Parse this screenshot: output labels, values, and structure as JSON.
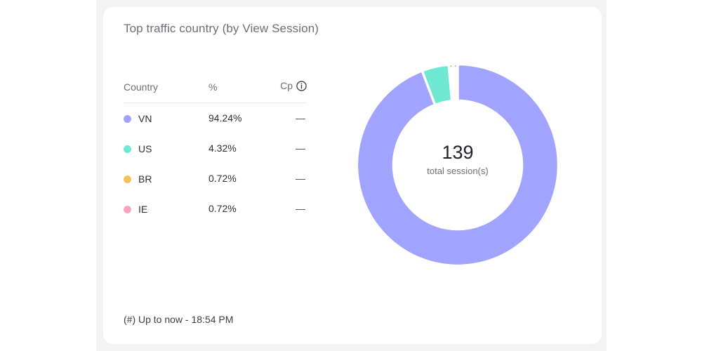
{
  "card": {
    "title": "Top traffic country (by View Session)",
    "footer": "(#) Up to now - 18:54 PM"
  },
  "table": {
    "headers": {
      "country": "Country",
      "percent": "%",
      "cp": "Cp"
    },
    "info_icon": "info-circle-icon",
    "rows": [
      {
        "country": "VN",
        "percent": "94.24%",
        "cp": "—",
        "color": "#a0a4ff"
      },
      {
        "country": "US",
        "percent": "4.32%",
        "cp": "—",
        "color": "#6ee7d3"
      },
      {
        "country": "BR",
        "percent": "0.72%",
        "cp": "—",
        "color": "#f6c15b"
      },
      {
        "country": "IE",
        "percent": "0.72%",
        "cp": "—",
        "color": "#f6a6b8"
      }
    ]
  },
  "chart_data": {
    "type": "pie",
    "variant": "donut",
    "categories": [
      "VN",
      "US",
      "BR",
      "IE"
    ],
    "values": [
      94.24,
      4.32,
      0.72,
      0.72
    ],
    "colors": [
      "#a0a4ff",
      "#6ee7d3",
      "#f6c15b",
      "#f6a6b8"
    ],
    "center_value": "139",
    "center_label": "total session(s)"
  }
}
